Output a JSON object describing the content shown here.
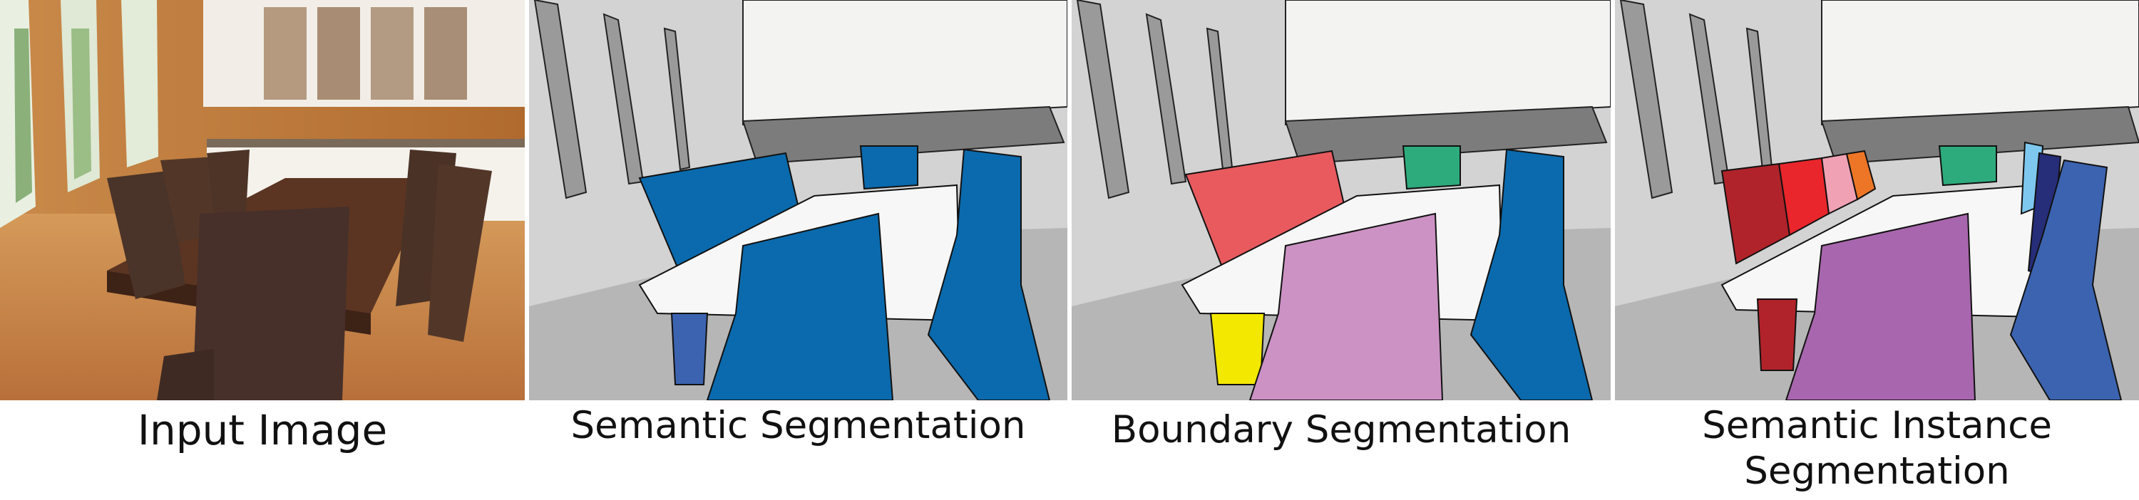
{
  "figure": {
    "captions": {
      "input": "Input Image",
      "semantic": "Semantic Segmentation",
      "boundary": "Boundary Segmentation",
      "instance_line1": "Semantic Instance",
      "instance_line2": "Segmentation"
    },
    "palette": {
      "wall": "#d3d3d3",
      "floor": "#b6b6b6",
      "ceiling": "#f3f3f2",
      "window": "#9a9a9a",
      "table": "#f7f7f7",
      "chair_semantic": "#0a6aad",
      "chair_red": "#e85a5e",
      "chair_green": "#2dab7c",
      "chair_yellow": "#f3e800",
      "chair_pink": "#cc92c4",
      "instance_darkred": "#b1232a",
      "instance_red": "#e8262b",
      "instance_lightpink": "#f0a2b4",
      "instance_orange": "#ec7626",
      "instance_lightblue": "#7ec8ef",
      "instance_navy": "#262d79",
      "instance_blue": "#3b63b0",
      "instance_purple": "#a866ae"
    }
  }
}
